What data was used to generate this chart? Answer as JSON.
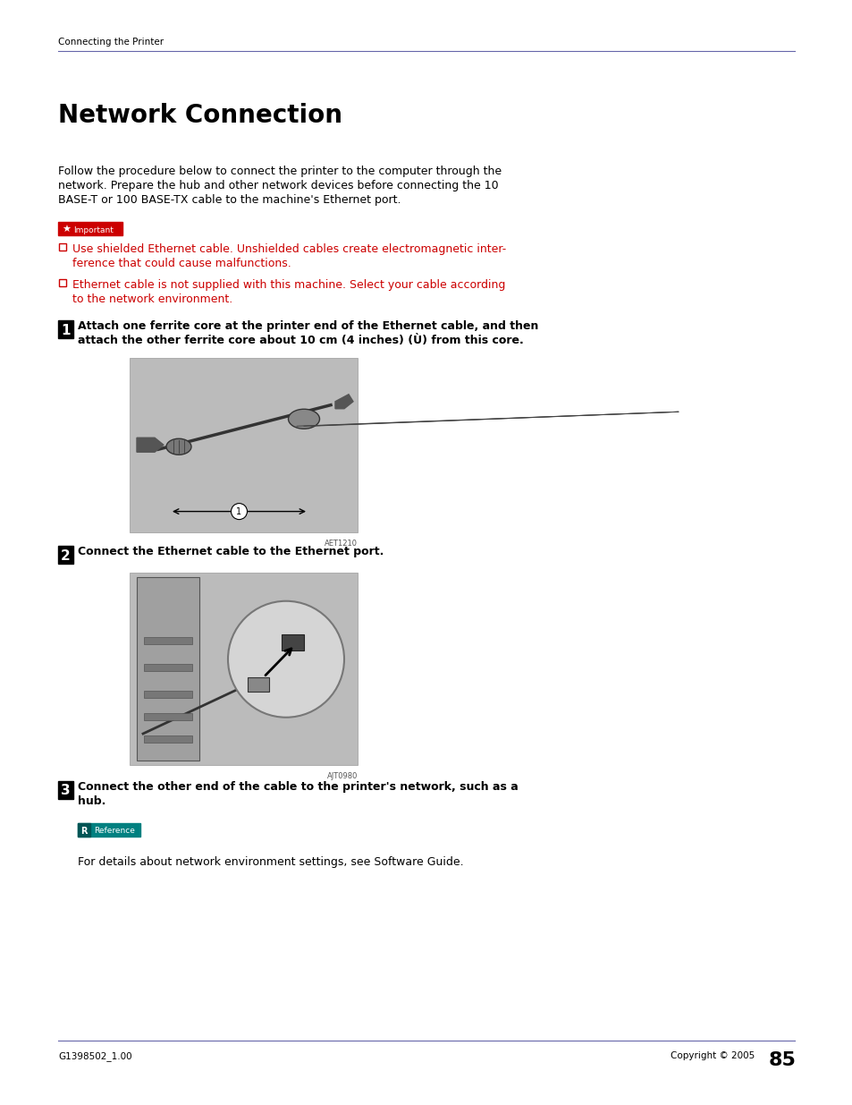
{
  "bg_color": "#ffffff",
  "header_line_color": "#6666aa",
  "header_text": "Connecting the Printer",
  "header_text_color": "#000000",
  "header_text_size": 7.5,
  "title": "Network Connection",
  "title_size": 20,
  "body_text_line1": "Follow the procedure below to connect the printer to the computer through the",
  "body_text_line2": "network. Prepare the hub and other network devices before connecting the 10",
  "body_text_line3": "BASE-T or 100 BASE-TX cable to the machine's Ethernet port.",
  "body_text_size": 9,
  "important_label": "Important",
  "important_bg": "#cc0000",
  "bullet_color": "#cc0000",
  "bullet1_line1": "Use shielded Ethernet cable. Unshielded cables create electromagnetic inter-",
  "bullet1_line2": "ference that could cause malfunctions.",
  "bullet2_line1": "Ethernet cable is not supplied with this machine. Select your cable according",
  "bullet2_line2": "to the network environment.",
  "bullet_text_size": 9,
  "step1_num": "1",
  "step1_line1": "Attach one ferrite core at the printer end of the Ethernet cable, and then",
  "step1_line2": "attach the other ferrite core about 10 cm (4 inches) (Ù) from this core.",
  "step1_text_size": 9,
  "step2_num": "2",
  "step2_text": "Connect the Ethernet cable to the Ethernet port.",
  "step2_text_size": 9,
  "step3_num": "3",
  "step3_line1": "Connect the other end of the cable to the printer's network, such as a",
  "step3_line2": "hub.",
  "step3_text_size": 9,
  "reference_label": "Reference",
  "reference_bg": "#008080",
  "ref_body": "For details about network environment settings, see Software Guide.",
  "ref_body_size": 9,
  "footer_left": "G1398502_1.00",
  "footer_right": "Copyright © 2005",
  "footer_page": "85",
  "footer_size": 7.5,
  "footer_line_color": "#6666aa",
  "image1_caption": "AET1210",
  "image2_caption": "AJT0980",
  "image_bg": "#bbbbbb",
  "step_num_bg": "#000000",
  "step_num_color": "#ffffff"
}
